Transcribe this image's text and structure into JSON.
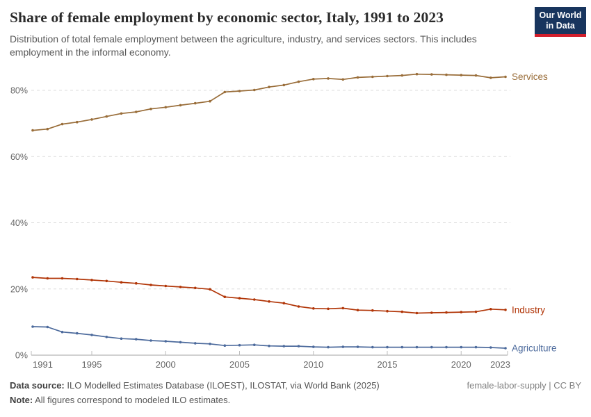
{
  "header": {
    "title": "Share of female employment by economic sector, Italy, 1991 to 2023",
    "subtitle": "Distribution of total female employment between the agriculture, industry, and services sectors. This includes employment in the informal economy."
  },
  "logo": {
    "line1": "Our World",
    "line2": "in Data",
    "bg_color": "#18355e",
    "accent_color": "#d21e2b"
  },
  "chart_data": {
    "type": "line",
    "title": "Share of female employment by economic sector, Italy, 1991 to 2023",
    "xlabel": "",
    "ylabel": "",
    "x": [
      1991,
      1992,
      1993,
      1994,
      1995,
      1996,
      1997,
      1998,
      1999,
      2000,
      2001,
      2002,
      2003,
      2004,
      2005,
      2006,
      2007,
      2008,
      2009,
      2010,
      2011,
      2012,
      2013,
      2014,
      2015,
      2016,
      2017,
      2018,
      2019,
      2020,
      2021,
      2022,
      2023
    ],
    "x_ticks": [
      1991,
      1995,
      2000,
      2005,
      2010,
      2015,
      2020,
      2023
    ],
    "y_ticks": [
      0,
      20,
      40,
      60,
      80
    ],
    "y_tick_suffix": "%",
    "ylim": [
      0,
      88
    ],
    "grid": "dashed horizontal",
    "legend_position": "end-of-line labels, right side",
    "series": [
      {
        "name": "Services",
        "color": "#996D39",
        "values": [
          67.9,
          68.3,
          69.8,
          70.4,
          71.2,
          72.1,
          73.0,
          73.5,
          74.4,
          74.9,
          75.5,
          76.1,
          76.7,
          79.5,
          79.8,
          80.1,
          81.0,
          81.6,
          82.6,
          83.4,
          83.6,
          83.3,
          83.9,
          84.1,
          84.3,
          84.5,
          84.9,
          84.8,
          84.7,
          84.6,
          84.5,
          83.8,
          84.1
        ]
      },
      {
        "name": "Industry",
        "color": "#B13507",
        "values": [
          23.5,
          23.2,
          23.2,
          23.0,
          22.7,
          22.4,
          22.0,
          21.7,
          21.2,
          20.9,
          20.6,
          20.3,
          19.9,
          17.6,
          17.2,
          16.8,
          16.2,
          15.7,
          14.7,
          14.1,
          14.0,
          14.2,
          13.6,
          13.5,
          13.3,
          13.1,
          12.7,
          12.8,
          12.9,
          13.0,
          13.1,
          13.9,
          13.7
        ]
      },
      {
        "name": "Agriculture",
        "color": "#4C6A9C",
        "values": [
          8.6,
          8.5,
          7.0,
          6.6,
          6.1,
          5.5,
          5.0,
          4.8,
          4.4,
          4.2,
          3.9,
          3.6,
          3.4,
          2.9,
          3.0,
          3.1,
          2.8,
          2.7,
          2.7,
          2.5,
          2.4,
          2.5,
          2.5,
          2.4,
          2.4,
          2.4,
          2.4,
          2.4,
          2.4,
          2.4,
          2.4,
          2.3,
          2.1
        ]
      }
    ]
  },
  "footer": {
    "source_label": "Data source:",
    "source_text": " ILO Modelled Estimates Database (ILOEST), ILOSTAT, via World Bank (2025)",
    "right_text": "female-labor-supply | CC BY",
    "note_label": "Note:",
    "note_text": " All figures correspond to modeled ILO estimates."
  }
}
